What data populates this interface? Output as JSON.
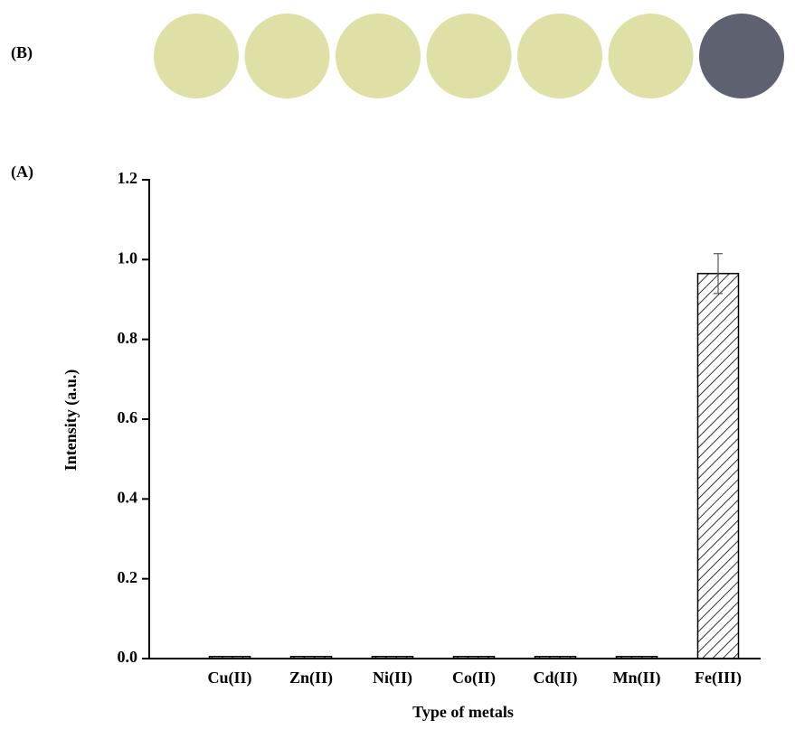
{
  "panel_labels": [
    "(B)",
    "(A)"
  ],
  "swatch_colors": [
    "#dfe0a6",
    "#dfe0a6",
    "#dfe0a6",
    "#dfe0a6",
    "#dfe0a6",
    "#dfe0a6",
    "#5d6170"
  ],
  "chart_data": {
    "type": "bar",
    "y_label": "Intensity (a.u.)",
    "x_label": "Type of metals",
    "categories": [
      "Cu(II)",
      "Zn(II)",
      "Ni(II)",
      "Co(II)",
      "Cd(II)",
      "Mn(II)",
      "Fe(III)"
    ],
    "values": [
      0.005,
      0.005,
      0.005,
      0.005,
      0.005,
      0.005,
      0.965
    ],
    "errors": [
      null,
      null,
      null,
      null,
      null,
      null,
      0.05
    ],
    "color": "#000000",
    "hatch": true,
    "ylim": [
      0,
      1.2
    ],
    "yticks": [
      {
        "value": 0,
        "label": "0.0"
      },
      {
        "value": 0.2,
        "label": "0.2"
      },
      {
        "value": 0.4,
        "label": "0.4"
      },
      {
        "value": 0.6,
        "label": "0.6"
      },
      {
        "value": 0.8,
        "label": "0.8"
      },
      {
        "value": 1,
        "label": "1.0"
      },
      {
        "value": 1.2,
        "label": "1.2"
      }
    ]
  }
}
